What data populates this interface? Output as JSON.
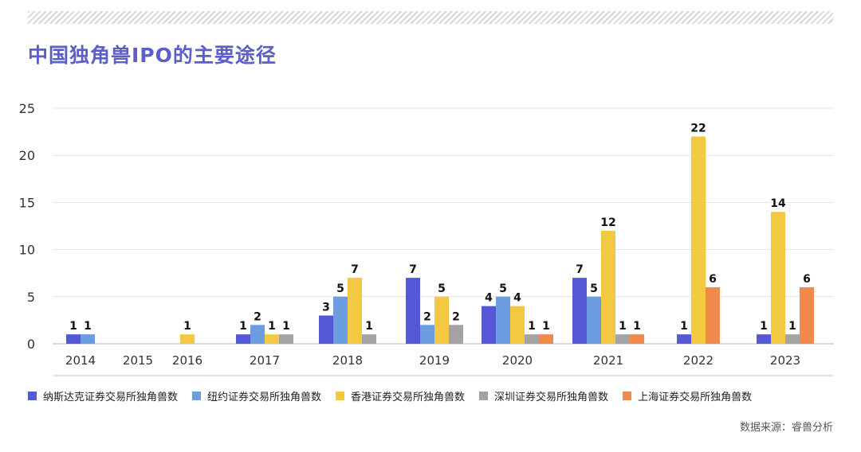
{
  "title": "中国独角兽IPO的主要途径",
  "source": "数据来源：睿兽分析",
  "colors": [
    "#5558d4",
    "#6b9de0",
    "#f3c943",
    "#a3a3a3",
    "#ef8a4c"
  ],
  "chart_data": {
    "type": "bar",
    "title": "中国独角兽IPO的主要途径",
    "categories": [
      "2014",
      "2015",
      "2016",
      "2017",
      "2018",
      "2019",
      "2020",
      "2021",
      "2022",
      "2023"
    ],
    "ylim": [
      0,
      25
    ],
    "yticks": [
      0,
      5,
      10,
      15,
      20,
      25
    ],
    "grid": true,
    "legend_position": "bottom",
    "series": [
      {
        "name": "纳斯达克证券交易所独角兽数",
        "values": [
          1,
          null,
          null,
          1,
          3,
          7,
          4,
          7,
          1,
          1
        ]
      },
      {
        "name": "纽约证券交易所独角兽数",
        "values": [
          1,
          null,
          null,
          2,
          5,
          2,
          5,
          5,
          null,
          null
        ]
      },
      {
        "name": "香港证券交易所独角兽数",
        "values": [
          null,
          null,
          1,
          1,
          7,
          5,
          4,
          12,
          22,
          14
        ]
      },
      {
        "name": "深圳证券交易所独角兽数",
        "values": [
          null,
          null,
          null,
          1,
          1,
          2,
          1,
          1,
          null,
          1
        ]
      },
      {
        "name": "上海证券交易所独角兽数",
        "values": [
          null,
          null,
          null,
          null,
          null,
          null,
          1,
          1,
          6,
          6
        ]
      }
    ]
  }
}
